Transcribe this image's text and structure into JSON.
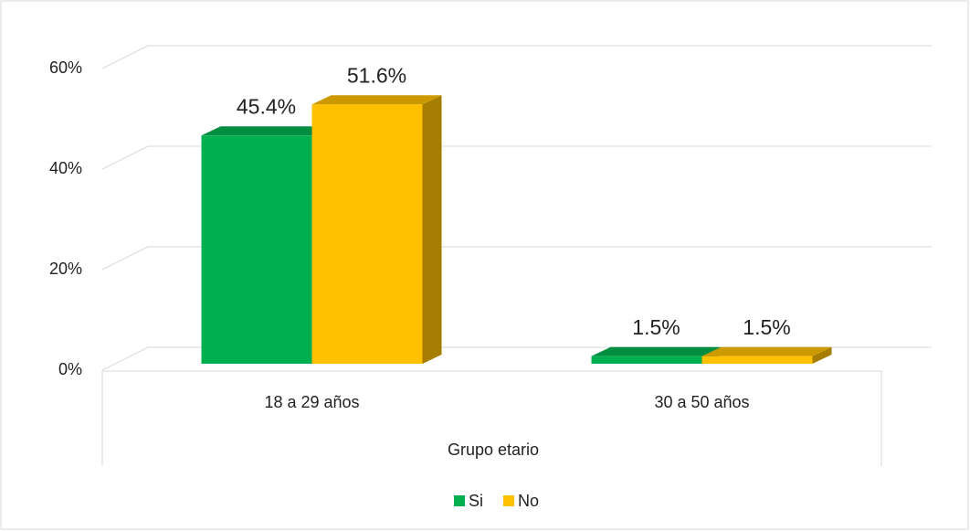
{
  "chart_data": {
    "type": "bar3d",
    "categories": [
      "18 a 29 años",
      "30 a 50 años"
    ],
    "series": [
      {
        "name": "Si",
        "color": "#00b050",
        "values": [
          45.4,
          1.5
        ],
        "value_labels": [
          "45.4%",
          "1.5%"
        ]
      },
      {
        "name": "No",
        "color": "#ffc000",
        "values": [
          51.6,
          1.5
        ],
        "value_labels": [
          "51.6%",
          "1.5%"
        ]
      }
    ],
    "x_label": "Grupo etario",
    "ylim": [
      0,
      60
    ],
    "yticks": [
      {
        "value": 0,
        "label": "0%"
      },
      {
        "value": 20,
        "label": "20%"
      },
      {
        "value": 40,
        "label": "40%"
      },
      {
        "value": 60,
        "label": "60%"
      }
    ],
    "grid": true,
    "legend": "bottom"
  }
}
